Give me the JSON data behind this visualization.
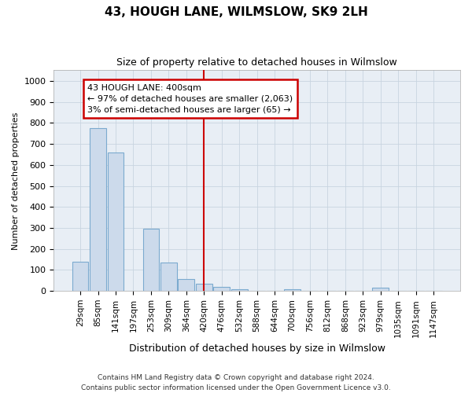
{
  "title": "43, HOUGH LANE, WILMSLOW, SK9 2LH",
  "subtitle": "Size of property relative to detached houses in Wilmslow",
  "xlabel": "Distribution of detached houses by size in Wilmslow",
  "ylabel": "Number of detached properties",
  "categories": [
    "29sqm",
    "85sqm",
    "141sqm",
    "197sqm",
    "253sqm",
    "309sqm",
    "364sqm",
    "420sqm",
    "476sqm",
    "532sqm",
    "588sqm",
    "644sqm",
    "700sqm",
    "756sqm",
    "812sqm",
    "868sqm",
    "923sqm",
    "979sqm",
    "1035sqm",
    "1091sqm",
    "1147sqm"
  ],
  "values": [
    140,
    775,
    660,
    0,
    295,
    135,
    55,
    33,
    18,
    10,
    0,
    0,
    10,
    0,
    0,
    0,
    0,
    15,
    0,
    0,
    0
  ],
  "bar_color": "#ccdaeb",
  "bar_edge_color": "#7baacf",
  "vline_index": 7,
  "vline_color": "#cc0000",
  "ann_line1": "43 HOUGH LANE: 400sqm",
  "ann_line2": "← 97% of detached houses are smaller (2,063)",
  "ann_line3": "3% of semi-detached houses are larger (65) →",
  "ann_box_facecolor": "#ffffff",
  "ann_box_edgecolor": "#cc0000",
  "grid_color": "#c8d4e0",
  "fig_bg": "#ffffff",
  "plot_bg": "#e8eef5",
  "ylim": [
    0,
    1050
  ],
  "yticks": [
    0,
    100,
    200,
    300,
    400,
    500,
    600,
    700,
    800,
    900,
    1000
  ],
  "footer1": "Contains HM Land Registry data © Crown copyright and database right 2024.",
  "footer2": "Contains public sector information licensed under the Open Government Licence v3.0.",
  "title_fontsize": 11,
  "subtitle_fontsize": 9,
  "ylabel_fontsize": 8,
  "xlabel_fontsize": 9,
  "tick_fontsize": 8,
  "xtick_fontsize": 7.5
}
